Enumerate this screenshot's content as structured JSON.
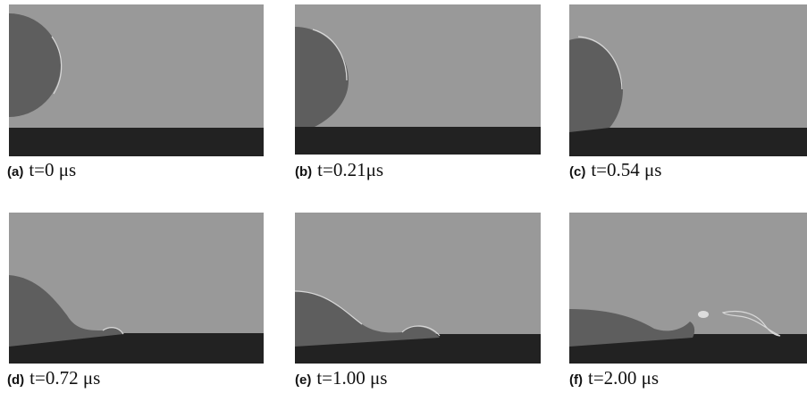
{
  "panels": [
    {
      "label": "(a)",
      "caption": "t=0 μs"
    },
    {
      "label": "(b)",
      "caption": "t=0.21μs"
    },
    {
      "label": "(c)",
      "caption": "t=0.54 μs"
    },
    {
      "label": "(d)",
      "caption": "t=0.72 μs"
    },
    {
      "label": "(e)",
      "caption": "t=1.00 μs"
    },
    {
      "label": "(f)",
      "caption": "t=2.00 μs"
    }
  ]
}
